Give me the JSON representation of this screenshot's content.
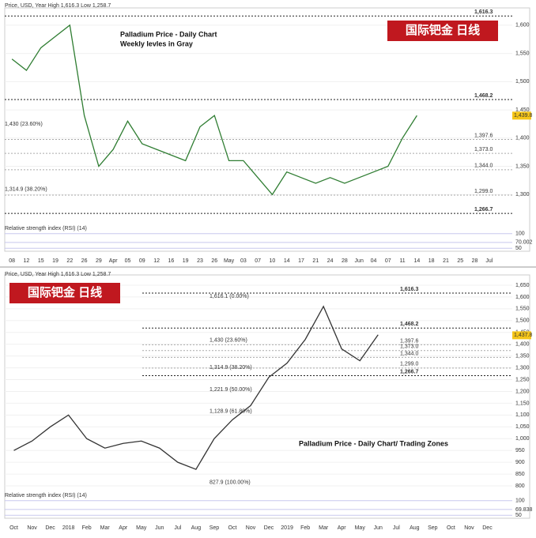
{
  "chart_data": [
    {
      "type": "line",
      "header": "Price, USD, Year High 1,616.3 Low 1,258.7",
      "badge": "国际钯金  日线",
      "title": "Palladium Price - Daily Chart",
      "subtitle": "Weekly levles in Gray",
      "color": "#2f7d32",
      "categories": [
        "08",
        "12",
        "15",
        "19",
        "22",
        "26",
        "29",
        "Apr",
        "05",
        "09",
        "12",
        "16",
        "19",
        "23",
        "26",
        "May",
        "03",
        "07",
        "10",
        "14",
        "17",
        "21",
        "24",
        "28",
        "Jun",
        "04",
        "07",
        "11",
        "14",
        "18",
        "21",
        "25",
        "28",
        "Jul"
      ],
      "values": [
        1540,
        1520,
        1560,
        1580,
        1600,
        1440,
        1350,
        1380,
        1430,
        1390,
        1380,
        1370,
        1360,
        1420,
        1440,
        1360,
        1360,
        1330,
        1300,
        1340,
        1330,
        1320,
        1330,
        1320,
        1330,
        1340,
        1350,
        1400,
        1440,
        null,
        null,
        null,
        null,
        null
      ],
      "ylim": [
        1250,
        1625
      ],
      "yticks": [
        {
          "value": 1300,
          "label": "1,300"
        },
        {
          "value": 1350,
          "label": "1,350"
        },
        {
          "value": 1400,
          "label": "1,400"
        },
        {
          "value": 1450,
          "label": "1,450"
        },
        {
          "value": 1500,
          "label": "1,500"
        },
        {
          "value": 1550,
          "label": "1,550"
        },
        {
          "value": 1600,
          "label": "1,600"
        }
      ],
      "levels": [
        {
          "value": 1616.3,
          "label": "1,616.3"
        },
        {
          "value": 1468.2,
          "label": "1,468.2"
        },
        {
          "value": 1397.6,
          "label": "1,397.6"
        },
        {
          "value": 1373.0,
          "label": "1,373.0"
        },
        {
          "value": 1344.0,
          "label": "1,344.0"
        },
        {
          "value": 1299.0,
          "label": "1,299.0"
        },
        {
          "value": 1266.7,
          "label": "1,266.7"
        }
      ],
      "fib_labels": [
        {
          "value": 1430,
          "label": "1,430 (23.60%)"
        },
        {
          "value": 1314.9,
          "label": "1,314.9 (38.20%)"
        }
      ],
      "last": {
        "value": 1439.8,
        "label": "1,439.8"
      },
      "rsi": {
        "label": "Relative strength index (RSI) (14)",
        "ylim": [
          40,
          110
        ],
        "yticks": [
          50,
          {
            "value": 70.002,
            "label": "70.002"
          },
          100
        ]
      }
    },
    {
      "type": "line",
      "header": "Price, USD, Year High 1,616.3 Low 1,258.7",
      "badge": "国际钯金  日线",
      "title": "Palladium Price - Daily Chart/ Trading Zones",
      "color": "#333333",
      "categories": [
        "Oct",
        "Nov",
        "Dec",
        "2018",
        "Feb",
        "Mar",
        "Apr",
        "May",
        "Jun",
        "Jul",
        "Aug",
        "Sep",
        "Oct",
        "Nov",
        "Dec",
        "2019",
        "Feb",
        "Mar",
        "Apr",
        "May",
        "Jun",
        "Jul",
        "Aug",
        "Sep",
        "Oct",
        "Nov",
        "Dec"
      ],
      "values": [
        950,
        990,
        1050,
        1100,
        1000,
        960,
        980,
        990,
        960,
        900,
        870,
        1000,
        1080,
        1140,
        1260,
        1320,
        1420,
        1560,
        1380,
        1330,
        1440,
        null,
        null,
        null,
        null,
        null,
        null
      ],
      "ylim": [
        770,
        1680
      ],
      "yticks": [
        800,
        850,
        900,
        950,
        {
          "value": 1000,
          "label": "1,000"
        },
        {
          "value": 1050,
          "label": "1,050"
        },
        {
          "value": 1100,
          "label": "1,100"
        },
        {
          "value": 1150,
          "label": "1,150"
        },
        {
          "value": 1200,
          "label": "1,200"
        },
        {
          "value": 1250,
          "label": "1,250"
        },
        {
          "value": 1300,
          "label": "1,300"
        },
        {
          "value": 1350,
          "label": "1,350"
        },
        {
          "value": 1400,
          "label": "1,400"
        },
        {
          "value": 1450,
          "label": "1,450"
        },
        {
          "value": 1500,
          "label": "1,500"
        },
        {
          "value": 1550,
          "label": "1,550"
        },
        {
          "value": 1600,
          "label": "1,600"
        },
        {
          "value": 1650,
          "label": "1,650"
        }
      ],
      "levels": [
        {
          "value": 1616.3,
          "label": "1,616.3"
        },
        {
          "value": 1468.2,
          "label": "1,468.2"
        },
        {
          "value": 1397.6,
          "label": "1,397.6"
        },
        {
          "value": 1373.0,
          "label": "1,373.0"
        },
        {
          "value": 1344.0,
          "label": "1,344.0"
        },
        {
          "value": 1299.0,
          "label": "1,299.0"
        },
        {
          "value": 1266.7,
          "label": "1,266.7"
        }
      ],
      "fib_labels": [
        {
          "value": 1616.1,
          "label": "1,616.1 (0.00%)"
        },
        {
          "value": 1430,
          "label": "1,430 (23.60%)"
        },
        {
          "value": 1314.9,
          "label": "1,314.9 (38.20%)"
        },
        {
          "value": 1221.9,
          "label": "1,221.9 (50.00%)"
        },
        {
          "value": 1128.9,
          "label": "1,128.9 (61.80%)"
        },
        {
          "value": 827.9,
          "label": "827.9 (100.00%)"
        }
      ],
      "last": {
        "value": 1437.8,
        "label": "1,437.8"
      },
      "rsi": {
        "label": "Relative strength index (RSI) (14)",
        "ylim": [
          40,
          110
        ],
        "yticks": [
          50,
          {
            "value": 69.838,
            "label": "69.838"
          },
          100
        ]
      }
    }
  ]
}
